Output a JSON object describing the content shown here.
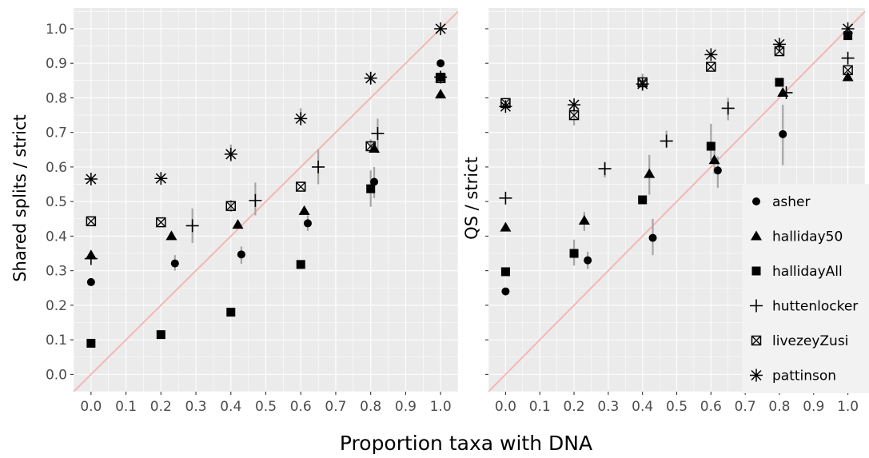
{
  "chart_data": [
    {
      "type": "scatter",
      "ylabel": "Shared splits / strict",
      "xlim": [
        -0.05,
        1.05
      ],
      "ylim": [
        -0.05,
        1.06
      ],
      "x_ticks": [
        "0.0",
        "0.1",
        "0.2",
        "0.3",
        "0.4",
        "0.5",
        "0.6",
        "0.7",
        "0.8",
        "0.9",
        "1.0"
      ],
      "y_ticks": [
        "0.0",
        "0.1",
        "0.2",
        "0.3",
        "0.4",
        "0.5",
        "0.6",
        "0.7",
        "0.8",
        "0.9",
        "1.0"
      ],
      "reference_line": "y = x",
      "series": [
        {
          "name": "asher",
          "points": [
            {
              "x": 0.0,
              "y": 0.267
            },
            {
              "x": 0.24,
              "y": 0.321
            },
            {
              "x": 0.43,
              "y": 0.347
            },
            {
              "x": 0.62,
              "y": 0.437
            },
            {
              "x": 0.81,
              "y": 0.557
            },
            {
              "x": 1.0,
              "y": 0.9
            }
          ]
        },
        {
          "name": "halliday50",
          "points": [
            {
              "x": 0.0,
              "y": 0.345
            },
            {
              "x": 0.23,
              "y": 0.4
            },
            {
              "x": 0.42,
              "y": 0.433
            },
            {
              "x": 0.61,
              "y": 0.473
            },
            {
              "x": 0.81,
              "y": 0.653
            },
            {
              "x": 1.0,
              "y": 0.81
            }
          ]
        },
        {
          "name": "hallidayAll",
          "points": [
            {
              "x": 0.0,
              "y": 0.09
            },
            {
              "x": 0.2,
              "y": 0.115
            },
            {
              "x": 0.4,
              "y": 0.18
            },
            {
              "x": 0.6,
              "y": 0.318
            },
            {
              "x": 0.8,
              "y": 0.537
            },
            {
              "x": 1.0,
              "y": 0.86
            }
          ]
        },
        {
          "name": "huttenlocker",
          "points": [
            {
              "x": 0.0,
              "y": 0.335
            },
            {
              "x": 0.29,
              "y": 0.43
            },
            {
              "x": 0.47,
              "y": 0.503
            },
            {
              "x": 0.65,
              "y": 0.6
            },
            {
              "x": 0.82,
              "y": 0.697
            },
            {
              "x": 1.0,
              "y": 0.86
            }
          ]
        },
        {
          "name": "livezeyZusi",
          "points": [
            {
              "x": 0.0,
              "y": 0.443
            },
            {
              "x": 0.2,
              "y": 0.44
            },
            {
              "x": 0.4,
              "y": 0.487
            },
            {
              "x": 0.6,
              "y": 0.543
            },
            {
              "x": 0.8,
              "y": 0.66
            },
            {
              "x": 1.0,
              "y": 0.857
            }
          ]
        },
        {
          "name": "pattinson",
          "points": [
            {
              "x": 0.0,
              "y": 0.565
            },
            {
              "x": 0.2,
              "y": 0.567
            },
            {
              "x": 0.4,
              "y": 0.637
            },
            {
              "x": 0.6,
              "y": 0.74
            },
            {
              "x": 0.8,
              "y": 0.857
            },
            {
              "x": 1.0,
              "y": 1.0
            }
          ]
        }
      ],
      "error_bars": [
        {
          "x": 0.24,
          "low": 0.3,
          "high": 0.345
        },
        {
          "x": 0.43,
          "low": 0.32,
          "high": 0.37
        },
        {
          "x": 0.62,
          "low": 0.415,
          "high": 0.46
        },
        {
          "x": 0.81,
          "low": 0.51,
          "high": 0.6
        },
        {
          "x": 0.8,
          "low": 0.485,
          "high": 0.59
        },
        {
          "x": 0.29,
          "low": 0.38,
          "high": 0.48
        },
        {
          "x": 0.47,
          "low": 0.46,
          "high": 0.555
        },
        {
          "x": 0.65,
          "low": 0.55,
          "high": 0.65
        },
        {
          "x": 0.82,
          "low": 0.64,
          "high": 0.74
        },
        {
          "x": 0.4,
          "low": 0.47,
          "high": 0.505
        },
        {
          "x": 0.8,
          "low": 0.645,
          "high": 0.68
        },
        {
          "x": 0.6,
          "low": 0.72,
          "high": 0.77
        },
        {
          "x": 0.4,
          "low": 0.615,
          "high": 0.665
        },
        {
          "x": 0.8,
          "low": 0.84,
          "high": 0.875
        }
      ]
    },
    {
      "type": "scatter",
      "ylabel": "QS / strict",
      "xlim": [
        -0.05,
        1.05
      ],
      "ylim": [
        -0.05,
        1.06
      ],
      "x_ticks": [
        "0.0",
        "0.1",
        "0.2",
        "0.3",
        "0.4",
        "0.5",
        "0.6",
        "0.7",
        "0.8",
        "0.9",
        "1.0"
      ],
      "reference_line": "y = x",
      "series": [
        {
          "name": "asher",
          "points": [
            {
              "x": 0.0,
              "y": 0.24
            },
            {
              "x": 0.24,
              "y": 0.33
            },
            {
              "x": 0.43,
              "y": 0.395
            },
            {
              "x": 0.62,
              "y": 0.59
            },
            {
              "x": 0.81,
              "y": 0.695
            },
            {
              "x": 1.0,
              "y": 0.98
            }
          ]
        },
        {
          "name": "halliday50",
          "points": [
            {
              "x": 0.0,
              "y": 0.425
            },
            {
              "x": 0.23,
              "y": 0.445
            },
            {
              "x": 0.42,
              "y": 0.58
            },
            {
              "x": 0.61,
              "y": 0.62
            },
            {
              "x": 0.81,
              "y": 0.815
            },
            {
              "x": 1.0,
              "y": 0.86
            }
          ]
        },
        {
          "name": "hallidayAll",
          "points": [
            {
              "x": 0.0,
              "y": 0.297
            },
            {
              "x": 0.2,
              "y": 0.35
            },
            {
              "x": 0.4,
              "y": 0.505
            },
            {
              "x": 0.6,
              "y": 0.66
            },
            {
              "x": 0.8,
              "y": 0.845
            },
            {
              "x": 1.0,
              "y": 0.98
            }
          ]
        },
        {
          "name": "huttenlocker",
          "points": [
            {
              "x": 0.0,
              "y": 0.51
            },
            {
              "x": 0.29,
              "y": 0.595
            },
            {
              "x": 0.47,
              "y": 0.675
            },
            {
              "x": 0.65,
              "y": 0.77
            },
            {
              "x": 0.82,
              "y": 0.815
            },
            {
              "x": 1.0,
              "y": 0.915
            }
          ]
        },
        {
          "name": "livezeyZusi",
          "points": [
            {
              "x": 0.0,
              "y": 0.785
            },
            {
              "x": 0.2,
              "y": 0.75
            },
            {
              "x": 0.4,
              "y": 0.845
            },
            {
              "x": 0.6,
              "y": 0.89
            },
            {
              "x": 0.8,
              "y": 0.935
            },
            {
              "x": 1.0,
              "y": 0.88
            }
          ]
        },
        {
          "name": "pattinson",
          "points": [
            {
              "x": 0.0,
              "y": 0.775
            },
            {
              "x": 0.2,
              "y": 0.78
            },
            {
              "x": 0.4,
              "y": 0.84
            },
            {
              "x": 0.6,
              "y": 0.925
            },
            {
              "x": 0.8,
              "y": 0.955
            },
            {
              "x": 1.0,
              "y": 1.0
            }
          ]
        }
      ],
      "error_bars": [
        {
          "x": 0.24,
          "low": 0.305,
          "high": 0.355
        },
        {
          "x": 0.43,
          "low": 0.345,
          "high": 0.45
        },
        {
          "x": 0.62,
          "low": 0.54,
          "high": 0.63
        },
        {
          "x": 0.81,
          "low": 0.605,
          "high": 0.78
        },
        {
          "x": 0.23,
          "low": 0.415,
          "high": 0.47
        },
        {
          "x": 0.42,
          "low": 0.52,
          "high": 0.635
        },
        {
          "x": 0.61,
          "low": 0.58,
          "high": 0.66
        },
        {
          "x": 0.2,
          "low": 0.315,
          "high": 0.39
        },
        {
          "x": 0.6,
          "low": 0.62,
          "high": 0.725
        },
        {
          "x": 0.29,
          "low": 0.57,
          "high": 0.615
        },
        {
          "x": 0.47,
          "low": 0.655,
          "high": 0.705
        },
        {
          "x": 0.65,
          "low": 0.735,
          "high": 0.8
        },
        {
          "x": 0.2,
          "low": 0.72,
          "high": 0.77
        },
        {
          "x": 0.4,
          "low": 0.82,
          "high": 0.87
        }
      ]
    }
  ],
  "xlabel": "Proportion taxa with DNA",
  "legend": {
    "position": "right",
    "entries": [
      {
        "name": "asher",
        "shape": "circle"
      },
      {
        "name": "halliday50",
        "shape": "triangle"
      },
      {
        "name": "hallidayAll",
        "shape": "square"
      },
      {
        "name": "huttenlocker",
        "shape": "plus"
      },
      {
        "name": "livezeyZusi",
        "shape": "boxed-cross"
      },
      {
        "name": "pattinson",
        "shape": "asterisk"
      }
    ]
  },
  "colors": {
    "panel_background": "#ebebeb",
    "grid_major": "#ffffff",
    "points": "#000000",
    "error_bars": "#a6a6a6",
    "reference_line": "#f4b6b6",
    "tick_text": "#4d4d4d"
  },
  "grid": true
}
